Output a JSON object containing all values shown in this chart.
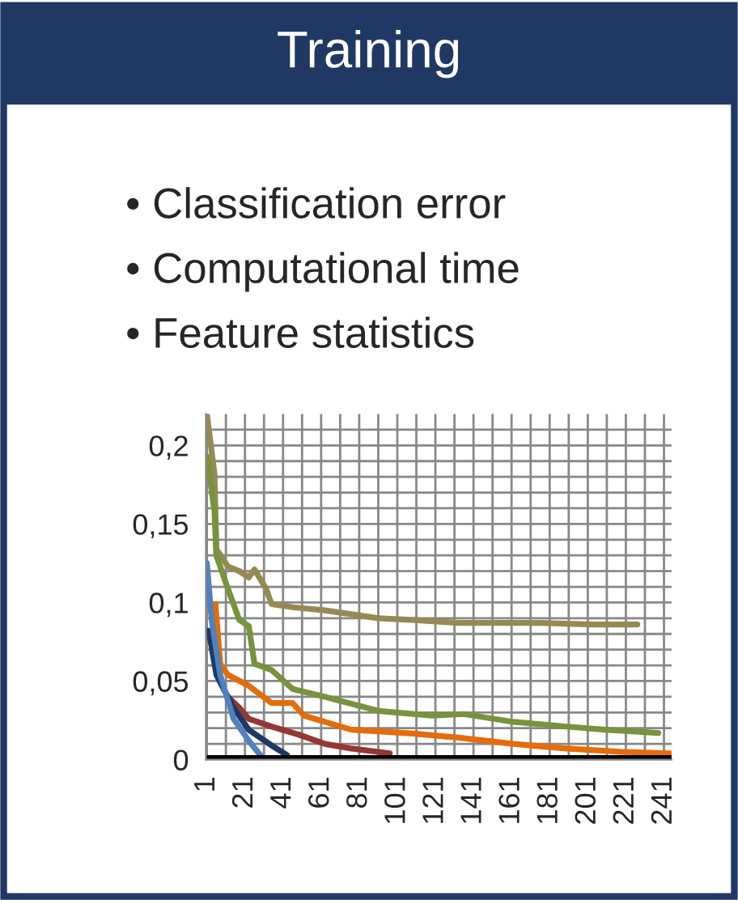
{
  "chart_data": {
    "type": "line",
    "title": "Training",
    "annotations": [
      "• Classification error",
      "• Computational time",
      "• Feature statistics"
    ],
    "xlim": [
      0.5,
      245
    ],
    "xticks": [
      {
        "value": 1,
        "label": "1"
      },
      {
        "value": 11,
        "label": null
      },
      {
        "value": 21,
        "label": "21"
      },
      {
        "value": 31,
        "label": null
      },
      {
        "value": 41,
        "label": "41"
      },
      {
        "value": 51,
        "label": null
      },
      {
        "value": 61,
        "label": "61"
      },
      {
        "value": 71,
        "label": null
      },
      {
        "value": 81,
        "label": "81"
      },
      {
        "value": 91,
        "label": null
      },
      {
        "value": 101,
        "label": "101"
      },
      {
        "value": 111,
        "label": null
      },
      {
        "value": 121,
        "label": "121"
      },
      {
        "value": 131,
        "label": null
      },
      {
        "value": 141,
        "label": "141"
      },
      {
        "value": 151,
        "label": null
      },
      {
        "value": 161,
        "label": "161"
      },
      {
        "value": 171,
        "label": null
      },
      {
        "value": 181,
        "label": "181"
      },
      {
        "value": 191,
        "label": null
      },
      {
        "value": 201,
        "label": "201"
      },
      {
        "value": 211,
        "label": null
      },
      {
        "value": 221,
        "label": "221"
      },
      {
        "value": 231,
        "label": null
      },
      {
        "value": 241,
        "label": "241"
      }
    ],
    "ylim": [
      0,
      0.22
    ],
    "yticks": [
      {
        "value": 0,
        "label": "0"
      },
      {
        "value": 0.01,
        "label": null
      },
      {
        "value": 0.02,
        "label": null
      },
      {
        "value": 0.03,
        "label": null
      },
      {
        "value": 0.04,
        "label": null
      },
      {
        "value": 0.05,
        "label": "0,05"
      },
      {
        "value": 0.06,
        "label": null
      },
      {
        "value": 0.07,
        "label": null
      },
      {
        "value": 0.08,
        "label": null
      },
      {
        "value": 0.09,
        "label": null
      },
      {
        "value": 0.1,
        "label": "0,1"
      },
      {
        "value": 0.11,
        "label": null
      },
      {
        "value": 0.12,
        "label": null
      },
      {
        "value": 0.13,
        "label": null
      },
      {
        "value": 0.14,
        "label": null
      },
      {
        "value": 0.15,
        "label": "0,15"
      },
      {
        "value": 0.16,
        "label": null
      },
      {
        "value": 0.17,
        "label": null
      },
      {
        "value": 0.18,
        "label": null
      },
      {
        "value": 0.19,
        "label": null
      },
      {
        "value": 0.2,
        "label": "0,2"
      },
      {
        "value": 0.21,
        "label": null
      }
    ],
    "grid": true,
    "legend": false,
    "line_style": "solid",
    "series": [
      {
        "color": "#948a54",
        "x": [
          1,
          5,
          6,
          12,
          18,
          23,
          26,
          32,
          35,
          46,
          63,
          91,
          108,
          133,
          176,
          204,
          227
        ],
        "values": [
          0.22,
          0.182,
          0.134,
          0.123,
          0.12,
          0.116,
          0.121,
          0.109,
          0.099,
          0.097,
          0.095,
          0.09,
          0.089,
          0.087,
          0.087,
          0.086,
          0.086
        ]
      },
      {
        "color": "#77933c",
        "x": [
          1,
          5,
          6,
          12,
          18,
          23,
          26,
          35,
          46,
          63,
          91,
          119,
          136,
          162,
          190,
          210,
          238
        ],
        "values": [
          0.193,
          0.158,
          0.13,
          0.109,
          0.089,
          0.085,
          0.061,
          0.057,
          0.045,
          0.04,
          0.031,
          0.028,
          0.029,
          0.024,
          0.021,
          0.019,
          0.017
        ]
      },
      {
        "color": "#e46c0a",
        "x": [
          5.5,
          8,
          12,
          23,
          35,
          46,
          52,
          77,
          105,
          133,
          162,
          190,
          218,
          244
        ],
        "values": [
          0.099,
          0.061,
          0.054,
          0.047,
          0.036,
          0.036,
          0.028,
          0.019,
          0.017,
          0.014,
          0.01,
          0.007,
          0.005,
          0.004
        ]
      },
      {
        "color": "#953735",
        "x": [
          12,
          18,
          23,
          35,
          49,
          63,
          77,
          97
        ],
        "values": [
          0.04,
          0.033,
          0.026,
          0.021,
          0.016,
          0.01,
          0.007,
          0.004
        ]
      },
      {
        "color": "#1f3864",
        "x": [
          2,
          6,
          15,
          23,
          35,
          43
        ],
        "values": [
          0.082,
          0.054,
          0.033,
          0.019,
          0.009,
          0.003
        ]
      },
      {
        "color": "#4f81bd",
        "x": [
          1,
          3.5,
          8,
          15,
          23,
          29
        ],
        "values": [
          0.125,
          0.089,
          0.054,
          0.026,
          0.012,
          0.003
        ]
      },
      {
        "color": "#000000",
        "x": [
          1,
          245
        ],
        "values": [
          0.001,
          0.001
        ]
      }
    ]
  }
}
